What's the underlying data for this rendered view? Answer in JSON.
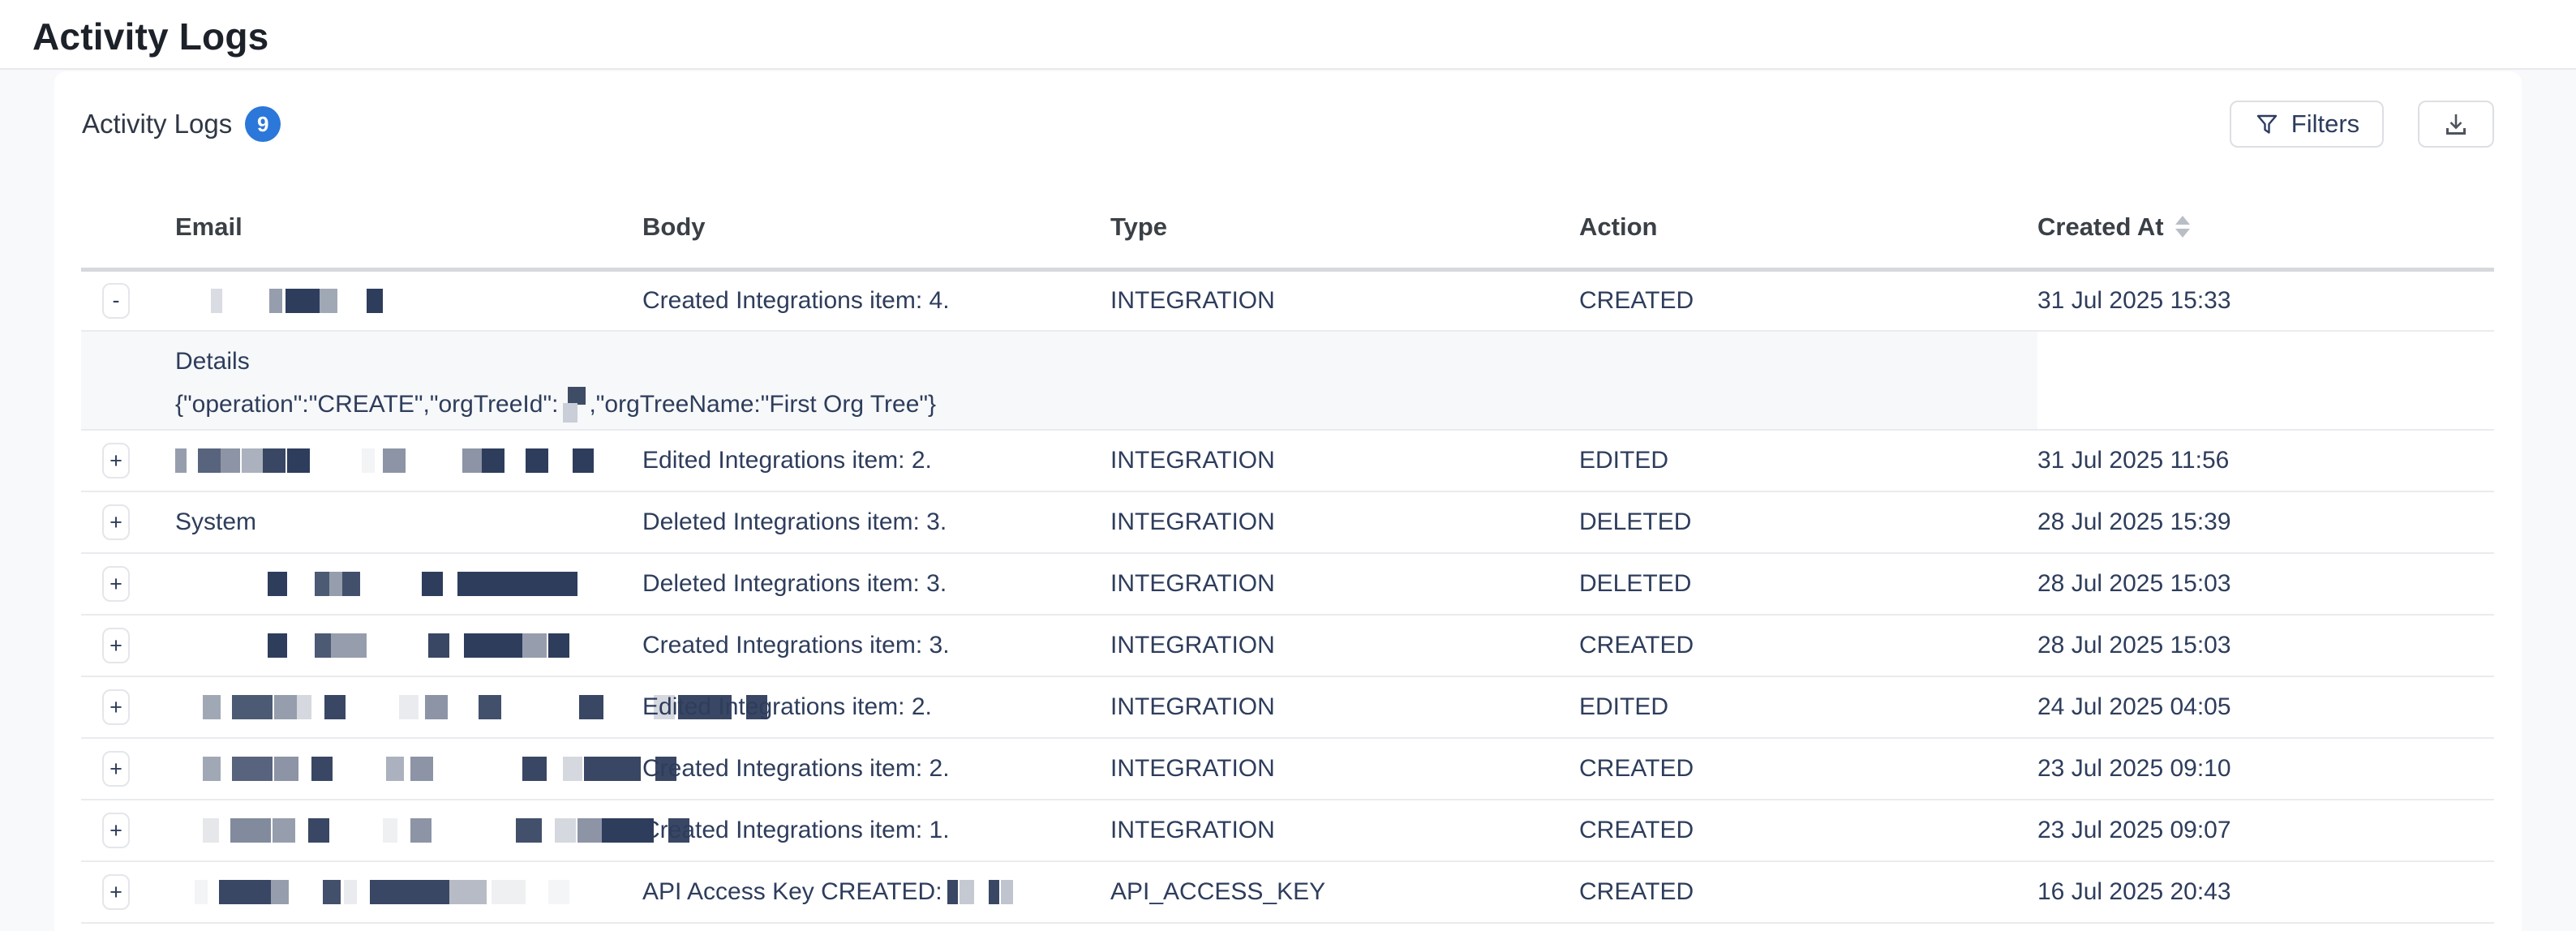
{
  "page": {
    "title": "Activity Logs"
  },
  "card": {
    "title": "Activity Logs",
    "badge_count": "9",
    "filters_label": "Filters",
    "icons": {
      "filters": "funnel-icon",
      "export": "download-icon",
      "sort": "sort-up-down-icon"
    }
  },
  "colors": {
    "badge_blue": "#2b77da",
    "text_navy": "#2e3d5c",
    "details_bg": "#f7f8f9",
    "page_bg": "#f8f9fb"
  },
  "table": {
    "columns": [
      "Email",
      "Body",
      "Type",
      "Action",
      "Created At"
    ],
    "sorted_column": "Created At",
    "rows": [
      {
        "expand_symbol": "-",
        "email_text": "",
        "email_redaction": [
          [
            14,
            44,
            0.18
          ],
          [
            16,
            58,
            0.5
          ],
          [
            42,
            4,
            1
          ],
          [
            22,
            0,
            0.45
          ],
          [
            20,
            36,
            1
          ]
        ],
        "body": "Created Integrations item: 4.",
        "type": "INTEGRATION",
        "action": "CREATED",
        "created_at": "31 Jul 2025 15:33",
        "details": {
          "label": "Details",
          "json_before": "{\"operation\":\"CREATE\",\"orgTreeId\": ",
          "json_after": ",\"orgTreeName:\"First Org Tree\"}"
        }
      },
      {
        "expand_symbol": "+",
        "email_text": "",
        "email_redaction": [
          [
            14,
            0,
            0.5
          ],
          [
            28,
            14,
            0.8
          ],
          [
            24,
            0,
            0.55
          ],
          [
            26,
            2,
            0.4
          ],
          [
            28,
            0,
            0.95
          ],
          [
            28,
            2,
            1
          ],
          [
            16,
            64,
            0.06
          ],
          [
            28,
            10,
            0.55
          ],
          [
            24,
            70,
            0.55
          ],
          [
            28,
            0,
            1
          ],
          [
            28,
            26,
            1
          ],
          [
            26,
            30,
            1
          ]
        ],
        "body": "Edited Integrations item: 2.",
        "type": "INTEGRATION",
        "action": "EDITED",
        "created_at": "31 Jul 2025 11:56"
      },
      {
        "expand_symbol": "+",
        "email_text": "System",
        "body": "Deleted Integrations item: 3.",
        "type": "INTEGRATION",
        "action": "DELETED",
        "created_at": "28 Jul 2025 15:39"
      },
      {
        "expand_symbol": "+",
        "email_text": "",
        "email_redaction": [
          [
            24,
            114,
            1
          ],
          [
            18,
            34,
            0.85
          ],
          [
            16,
            0,
            0.5
          ],
          [
            22,
            0,
            0.9
          ],
          [
            26,
            76,
            1
          ],
          [
            148,
            18,
            1
          ]
        ],
        "body": "Deleted Integrations item: 3.",
        "type": "INTEGRATION",
        "action": "DELETED",
        "created_at": "28 Jul 2025 15:03"
      },
      {
        "expand_symbol": "+",
        "email_text": "",
        "email_redaction": [
          [
            24,
            114,
            1
          ],
          [
            20,
            34,
            0.85
          ],
          [
            44,
            0,
            0.5
          ],
          [
            26,
            76,
            0.95
          ],
          [
            72,
            18,
            1
          ],
          [
            30,
            0,
            0.5
          ],
          [
            26,
            2,
            1
          ]
        ],
        "body": "Created Integrations item: 3.",
        "type": "INTEGRATION",
        "action": "CREATED",
        "created_at": "28 Jul 2025 15:03"
      },
      {
        "expand_symbol": "+",
        "email_text": "",
        "email_redaction": [
          [
            22,
            34,
            0.45
          ],
          [
            50,
            14,
            0.85
          ],
          [
            28,
            2,
            0.5
          ],
          [
            18,
            0,
            0.2
          ],
          [
            26,
            16,
            0.95
          ],
          [
            24,
            66,
            0.1
          ],
          [
            28,
            8,
            0.55
          ],
          [
            28,
            38,
            0.9
          ],
          [
            30,
            96,
            0.95
          ],
          [
            26,
            62,
            0.2
          ],
          [
            66,
            4,
            0.95
          ],
          [
            26,
            18,
            0.95
          ]
        ],
        "body": "Edited Integrations item: 2.",
        "type": "INTEGRATION",
        "action": "EDITED",
        "created_at": "24 Jul 2025 04:05"
      },
      {
        "expand_symbol": "+",
        "email_text": "",
        "email_redaction": [
          [
            22,
            34,
            0.45
          ],
          [
            50,
            14,
            0.8
          ],
          [
            30,
            2,
            0.55
          ],
          [
            26,
            16,
            0.95
          ],
          [
            22,
            66,
            0.4
          ],
          [
            28,
            8,
            0.55
          ],
          [
            30,
            110,
            0.95
          ],
          [
            24,
            20,
            0.2
          ],
          [
            70,
            2,
            0.95
          ],
          [
            26,
            18,
            0.95
          ]
        ],
        "body": "Created Integrations item: 2.",
        "type": "INTEGRATION",
        "action": "CREATED",
        "created_at": "23 Jul 2025 09:10"
      },
      {
        "expand_symbol": "+",
        "email_text": "",
        "email_redaction": [
          [
            20,
            34,
            0.12
          ],
          [
            50,
            14,
            0.6
          ],
          [
            28,
            2,
            0.5
          ],
          [
            26,
            16,
            0.95
          ],
          [
            18,
            66,
            0.08
          ],
          [
            26,
            16,
            0.55
          ],
          [
            32,
            104,
            0.9
          ],
          [
            26,
            16,
            0.2
          ],
          [
            30,
            2,
            0.55
          ],
          [
            64,
            0,
            1
          ],
          [
            26,
            18,
            0.95
          ]
        ],
        "body": "Created Integrations item: 1.",
        "type": "INTEGRATION",
        "action": "CREATED",
        "created_at": "23 Jul 2025 09:07"
      },
      {
        "expand_symbol": "+",
        "email_text": "",
        "email_redaction": [
          [
            16,
            24,
            0.06
          ],
          [
            64,
            14,
            0.95
          ],
          [
            22,
            0,
            0.5
          ],
          [
            22,
            42,
            0.9
          ],
          [
            16,
            4,
            0.1
          ],
          [
            98,
            16,
            0.95
          ],
          [
            46,
            0,
            0.35
          ],
          [
            42,
            6,
            0.08
          ],
          [
            26,
            28,
            0.05
          ]
        ],
        "body": "API Access Key CREATED:",
        "body_redaction": [
          [
            13,
            6,
            0.95
          ],
          [
            18,
            2,
            0.28
          ],
          [
            13,
            18,
            0.95
          ],
          [
            15,
            2,
            0.3
          ]
        ],
        "type": "API_ACCESS_KEY",
        "action": "CREATED",
        "created_at": "16 Jul 2025 20:43"
      }
    ]
  }
}
